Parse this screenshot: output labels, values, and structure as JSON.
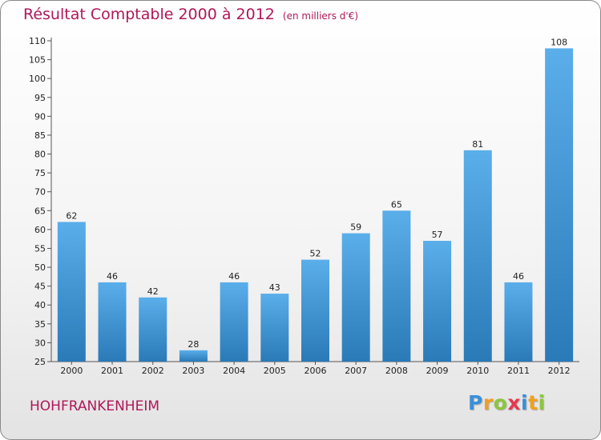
{
  "title": "Résultat Comptable 2000 à 2012",
  "unit_note": "(en milliers d'€)",
  "commune": "HOHFRANKENHEIM",
  "logo": {
    "letters": [
      "P",
      "r",
      "o",
      "x",
      "i",
      "t",
      "i"
    ],
    "colors": [
      "#3a8fd8",
      "#f0a020",
      "#8cc63f",
      "#e63950",
      "#3a8fd8",
      "#f0a020",
      "#8cc63f"
    ]
  },
  "colors": {
    "title": "#b0175a",
    "bar_light": "#5aaeea",
    "bar_dark": "#2a7ab8"
  },
  "chart_data": {
    "type": "bar",
    "title": "Résultat Comptable 2000 à 2012",
    "xlabel": "",
    "ylabel": "",
    "ylim": [
      25,
      110
    ],
    "ytick_step": 5,
    "grid": false,
    "categories": [
      "2000",
      "2001",
      "2002",
      "2003",
      "2004",
      "2005",
      "2006",
      "2007",
      "2008",
      "2009",
      "2010",
      "2011",
      "2012"
    ],
    "values": [
      62,
      46,
      42,
      28,
      46,
      43,
      52,
      59,
      65,
      57,
      81,
      46,
      108
    ]
  }
}
